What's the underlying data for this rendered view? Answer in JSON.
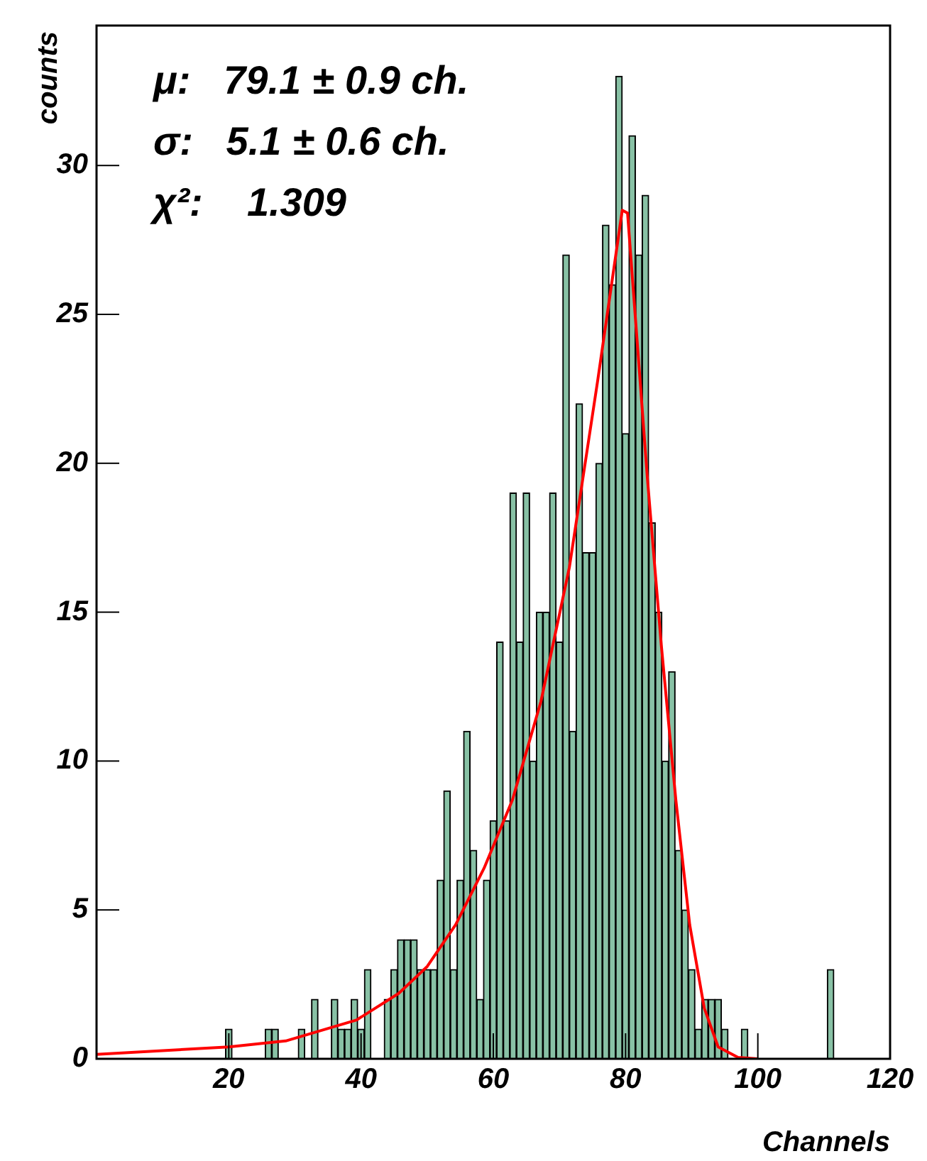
{
  "chart_data": {
    "type": "histogram",
    "xlabel": "Channels",
    "ylabel": "counts",
    "annotations": [
      "μ:   79.1 ± 0.9 ch.",
      "σ:   5.1 ± 0.6 ch.",
      "χ²:    1.309"
    ],
    "bins": [
      19.5,
      20.5,
      21.5,
      22.5,
      23.5,
      24.5,
      25.5,
      26.5,
      27.5,
      28.5,
      29.5,
      30.5,
      31.5,
      32.5,
      33.5,
      34.5,
      35.5,
      36.5,
      37.5,
      38.5,
      39.5,
      40.5,
      41.5,
      42.5,
      43.5,
      44.5,
      45.5,
      46.5,
      47.5,
      48.5,
      49.5,
      50.5,
      51.5,
      52.5,
      53.5,
      54.5,
      55.5,
      56.5,
      57.5,
      58.5,
      59.5,
      60.5,
      61.5,
      62.5,
      63.5,
      64.5,
      65.5,
      66.5,
      67.5,
      68.5,
      69.5,
      70.5,
      71.5,
      72.5,
      73.5,
      74.5,
      75.5,
      76.5,
      77.5,
      78.5,
      79.5,
      80.5,
      81.5,
      82.5,
      83.5,
      84.5,
      85.5,
      86.5,
      87.5,
      88.5,
      89.5,
      90.5,
      91.5,
      92.5,
      93.5,
      94.5,
      95.5,
      96.5,
      97.5,
      98.5,
      99.5,
      100.5,
      101.5,
      102.5,
      103.5,
      104.5,
      105.5,
      106.5,
      107.5,
      108.5,
      109.5,
      110.5,
      111.5
    ],
    "values": [
      1,
      0,
      0,
      0,
      0,
      0,
      1,
      1,
      0,
      0,
      0,
      1,
      0,
      2,
      0,
      0,
      2,
      1,
      1,
      2,
      1,
      3,
      0,
      0,
      2,
      3,
      4,
      4,
      4,
      3,
      3,
      3,
      6,
      9,
      3,
      6,
      11,
      7,
      2,
      6,
      8,
      14,
      8,
      19,
      14,
      19,
      10,
      15,
      15,
      19,
      14,
      27,
      11,
      22,
      17,
      17,
      20,
      28,
      26,
      33,
      21,
      31,
      27,
      29,
      18,
      15,
      10,
      13,
      7,
      5,
      3,
      1,
      2,
      2,
      2,
      1,
      0,
      0,
      1,
      0,
      0,
      0,
      0,
      0,
      0,
      0,
      0,
      0,
      0,
      0,
      0,
      3
    ],
    "color": "#88c1a5",
    "series": [
      {
        "type": "line",
        "color": "#ff0000",
        "x": [
          0,
          20,
          28.6,
          39.3,
          45.7,
          50,
          54.3,
          58.6,
          62.9,
          67.2,
          71.5,
          75.8,
          79.5,
          80.3,
          83.3,
          85.4,
          87.6,
          89.7,
          91.9,
          94,
          97,
          100
        ],
        "values": [
          0.15,
          0.4,
          0.6,
          1.3,
          2.2,
          3.1,
          4.5,
          6.4,
          8.7,
          12,
          16.5,
          22.8,
          28.5,
          28.4,
          19.5,
          13.9,
          8.7,
          4.5,
          1.7,
          0.4,
          0.05,
          0
        ]
      }
    ],
    "xlim": [
      0,
      120
    ],
    "xticks": [
      20,
      40,
      60,
      80,
      100,
      120
    ],
    "ylim": [
      0,
      34.7
    ],
    "yticks": [
      0,
      5,
      10,
      15,
      20,
      25,
      30
    ],
    "grid": false,
    "legend": false
  }
}
